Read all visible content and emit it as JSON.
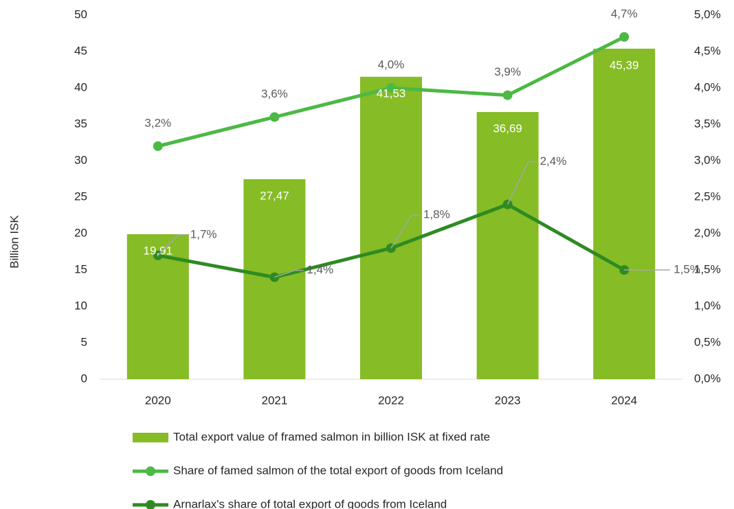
{
  "chart_data": {
    "type": "bar",
    "ylabel": "Billion ISK",
    "categories": [
      "2020",
      "2021",
      "2022",
      "2023",
      "2024"
    ],
    "ylim": [
      0,
      50
    ],
    "yticks": [
      0,
      5,
      10,
      15,
      20,
      25,
      30,
      35,
      40,
      45,
      50
    ],
    "y2lim": [
      0,
      5
    ],
    "y2ticks": [
      {
        "value": 0,
        "label": "0,0%"
      },
      {
        "value": 0.5,
        "label": "0,5%"
      },
      {
        "value": 1,
        "label": "1,0%"
      },
      {
        "value": 1.5,
        "label": "1,5%"
      },
      {
        "value": 2,
        "label": "2,0%"
      },
      {
        "value": 2.5,
        "label": "2,5%"
      },
      {
        "value": 3,
        "label": "3,0%"
      },
      {
        "value": 3.5,
        "label": "3,5%"
      },
      {
        "value": 4,
        "label": "4,0%"
      },
      {
        "value": 4.5,
        "label": "4,5%"
      },
      {
        "value": 5,
        "label": "5,0%"
      }
    ],
    "series": [
      {
        "name": "Total export value of framed salmon in billion ISK at fixed rate",
        "type": "bar",
        "color": "#86bc25",
        "values": [
          19.91,
          27.47,
          41.53,
          36.69,
          45.39
        ],
        "value_labels": [
          "19,91",
          "27,47",
          "41,53",
          "36,69",
          "45,39"
        ]
      },
      {
        "name": "Share of famed salmon of the total export of goods from Iceland",
        "type": "line",
        "axis": "y2",
        "color": "#4cb944",
        "values": [
          3.2,
          3.6,
          4.0,
          3.9,
          4.7
        ],
        "value_labels": [
          "3,2%",
          "3,6%",
          "4,0%",
          "3,9%",
          "4,7%"
        ]
      },
      {
        "name": "Arnarlax's share of total export of goods from Iceland",
        "type": "line",
        "axis": "y2",
        "color": "#2e8b22",
        "values": [
          1.7,
          1.4,
          1.8,
          2.4,
          1.5
        ],
        "value_labels": [
          "1,7%",
          "1,4%",
          "1,8%",
          "2,4%",
          "1,5%"
        ]
      }
    ]
  }
}
